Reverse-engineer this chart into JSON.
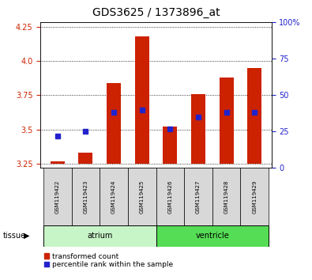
{
  "title": "GDS3625 / 1373896_at",
  "samples": [
    "GSM119422",
    "GSM119423",
    "GSM119424",
    "GSM119425",
    "GSM119426",
    "GSM119427",
    "GSM119428",
    "GSM119429"
  ],
  "transformed_counts": [
    3.27,
    3.33,
    3.84,
    4.18,
    3.52,
    3.76,
    3.88,
    3.95
  ],
  "percentile_ranks": [
    22,
    25,
    38,
    40,
    27,
    35,
    38,
    38
  ],
  "baseline": 3.25,
  "ylim_left": [
    3.22,
    4.28
  ],
  "ylim_right": [
    0,
    100
  ],
  "yticks_left": [
    3.25,
    3.5,
    3.75,
    4.0,
    4.25
  ],
  "yticks_right": [
    0,
    25,
    50,
    75,
    100
  ],
  "tissue_groups": [
    {
      "label": "atrium",
      "samples": [
        0,
        1,
        2,
        3
      ],
      "color": "#c8f5c8"
    },
    {
      "label": "ventricle",
      "samples": [
        4,
        5,
        6,
        7
      ],
      "color": "#55dd55"
    }
  ],
  "bar_color": "#cc2200",
  "marker_color": "#2222cc",
  "bar_width": 0.5,
  "left_axis_color": "#cc2200",
  "right_axis_color": "#2222cc",
  "tick_fontsize": 7,
  "title_fontsize": 10,
  "sample_fontsize": 5,
  "tissue_fontsize": 7,
  "legend_fontsize": 6.5,
  "tissue_label": "tissue",
  "legend_items": [
    "transformed count",
    "percentile rank within the sample"
  ]
}
